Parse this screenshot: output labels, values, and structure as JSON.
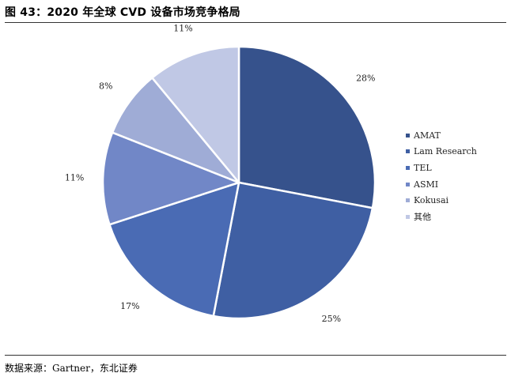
{
  "header": {
    "title": "图 43：2020 年全球 CVD 设备市场竞争格局"
  },
  "footer": {
    "source": "数据来源：Gartner，东北证券"
  },
  "chart_data": {
    "type": "pie",
    "start_angle_deg": 0,
    "direction": "clockwise",
    "legend_position": "right",
    "slices": [
      {
        "name": "AMAT",
        "value": 28,
        "label": "28%",
        "color": "#36528c"
      },
      {
        "name": "Lam Research",
        "value": 25,
        "label": "25%",
        "color": "#3f5fa3"
      },
      {
        "name": "TEL",
        "value": 17,
        "label": "17%",
        "color": "#4a6bb4"
      },
      {
        "name": "ASMI",
        "value": 11,
        "label": "11%",
        "color": "#7187c7"
      },
      {
        "name": "Kokusai",
        "value": 8,
        "label": "8%",
        "color": "#9facd6"
      },
      {
        "name": "其他",
        "value": 11,
        "label": "11%",
        "color": "#c0c8e5"
      }
    ]
  }
}
